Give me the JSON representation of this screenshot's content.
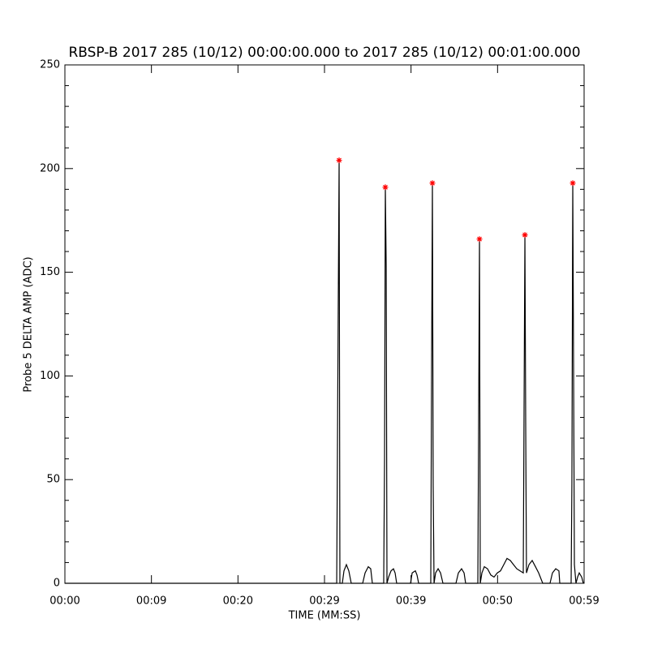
{
  "chart_data": {
    "type": "line",
    "title": "RBSP-B 2017 285 (10/12) 00:00:00.000 to 2017 285 (10/12) 00:01:00.000",
    "x_label": "TIME (MM:SS)",
    "y_label": "Probe 5 DELTA AMP (ADC)",
    "xlim": [
      0,
      60
    ],
    "ylim": [
      0,
      250
    ],
    "xticks": [
      {
        "value": 0,
        "label": "00:00"
      },
      {
        "value": 10,
        "label": "00:09"
      },
      {
        "value": 20,
        "label": "00:20"
      },
      {
        "value": 30,
        "label": "00:29"
      },
      {
        "value": 40,
        "label": "00:39"
      },
      {
        "value": 50,
        "label": "00:50"
      },
      {
        "value": 60,
        "label": "00:59"
      }
    ],
    "yticks": [
      0,
      50,
      100,
      150,
      200,
      250
    ],
    "y_minor_ticks_per_major": 5,
    "series": [
      {
        "color": "#000000",
        "x": [
          0,
          31.41,
          31.59,
          31.69,
          31.78,
          32.06,
          32.25,
          32.53,
          32.81,
          33.09,
          34.41,
          34.69,
          35.06,
          35.34,
          35.53,
          36.84,
          36.94,
          37.03,
          37.13,
          37.22,
          37.41,
          37.69,
          37.97,
          38.16,
          38.34,
          39.94,
          40.13,
          40.5,
          40.69,
          40.88,
          42.28,
          42.38,
          42.47,
          42.56,
          42.66,
          42.84,
          43.13,
          43.41,
          43.69,
          45.19,
          45.47,
          45.84,
          46.13,
          46.31,
          47.72,
          47.81,
          47.91,
          48,
          48.19,
          48.47,
          48.84,
          49.22,
          49.59,
          49.97,
          50.34,
          50.72,
          51.09,
          51.47,
          51.84,
          52.22,
          52.59,
          52.97,
          53.16,
          53.25,
          53.34,
          53.63,
          54,
          54.38,
          54.75,
          55.22,
          56.06,
          56.34,
          56.72,
          57.09,
          57.19,
          58.5,
          58.59,
          58.69,
          58.78,
          58.88,
          59.06,
          59.25,
          59.44,
          59.72,
          59.91
        ],
        "values": [
          0,
          0,
          135,
          204,
          0,
          0,
          6,
          9,
          6,
          0,
          0,
          5,
          8,
          7,
          0,
          0,
          60,
          191,
          153,
          0,
          3,
          6,
          7,
          5,
          0,
          0,
          5,
          6,
          4,
          0,
          0,
          108,
          193,
          47,
          0,
          5,
          7,
          5,
          0,
          0,
          5,
          7,
          5,
          0,
          0,
          76,
          166,
          0,
          5,
          8,
          7,
          4,
          3,
          5,
          6,
          9,
          12,
          11,
          9,
          7,
          6,
          5,
          168,
          78,
          5,
          9,
          11,
          8,
          5,
          0,
          0,
          5,
          7,
          6,
          0,
          0,
          48,
          193,
          107,
          9,
          0,
          3,
          5,
          3,
          0
        ]
      }
    ],
    "markers": {
      "color": "#ff0000",
      "x": [
        31.69,
        37.03,
        42.47,
        47.91,
        53.16,
        58.69
      ],
      "values": [
        204,
        191,
        193,
        166,
        168,
        193
      ]
    }
  }
}
